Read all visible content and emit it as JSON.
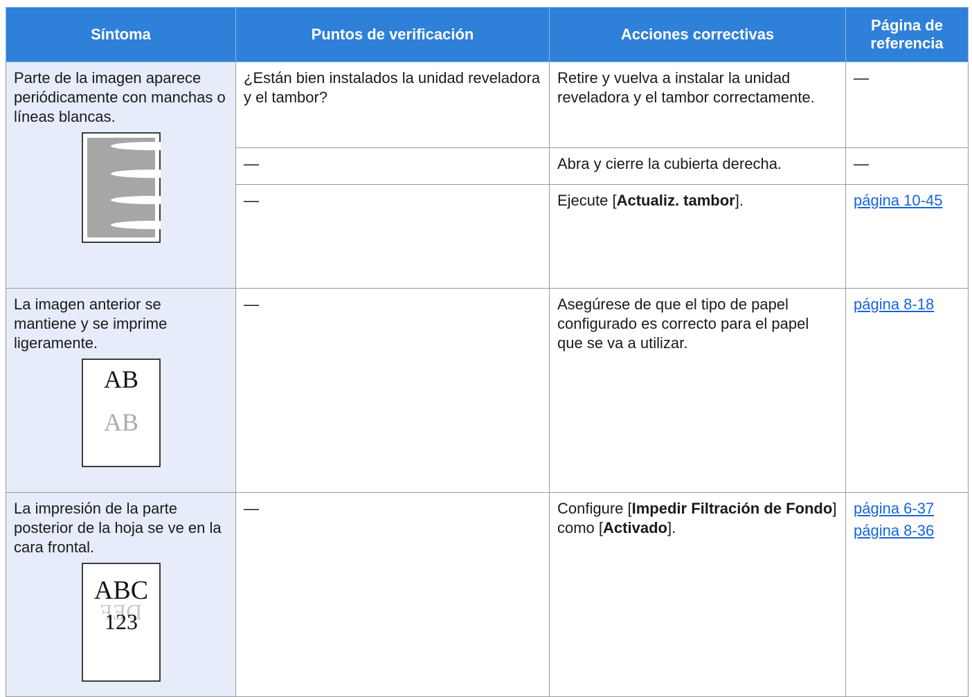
{
  "table": {
    "header": [
      "Síntoma",
      "Puntos de verificación",
      "Acciones correctivas",
      "Página de referencia"
    ],
    "rows": [
      {
        "symptom": "Parte de la imagen aparece periódicamente con manchas o líneas blancas.",
        "checks": [
          {
            "point": "¿Están bien instalados la unidad reveladora y el tambor?",
            "action": [
              {
                "text": "Retire y vuelva a instalar la unidad reveladora y el tambor correctamente."
              }
            ],
            "references": [
              {
                "text": "—"
              }
            ]
          },
          {
            "point": "—",
            "action": [
              {
                "text": "Abra y cierre la cubierta derecha."
              }
            ],
            "references": [
              {
                "text": "—"
              }
            ]
          },
          {
            "point": "—",
            "action": [
              {
                "text": "Ejecute ["
              },
              {
                "text": "Actualiz. tambor",
                "bold": true
              },
              {
                "text": "]."
              }
            ],
            "references": [
              {
                "text": "página 10-45",
                "link": true
              }
            ]
          }
        ]
      },
      {
        "symptom": "La imagen anterior se mantiene y se imprime ligeramente.",
        "illustration": [
          "AB",
          "AB"
        ],
        "checks": [
          {
            "point": "—",
            "action": [
              {
                "text": "Asegúrese de que el tipo de papel configurado es correcto para el papel que se va a utilizar."
              }
            ],
            "references": [
              {
                "text": "página 8-18",
                "link": true
              }
            ]
          }
        ]
      },
      {
        "symptom": "La impresión de la parte posterior de la hoja se ve en la cara frontal.",
        "illustration": [
          "ABC",
          "123",
          "DEF"
        ],
        "checks": [
          {
            "point": "—",
            "action": [
              {
                "text": "Configure ["
              },
              {
                "text": "Impedir Filtración de Fondo",
                "bold": true
              },
              {
                "text": "] como ["
              },
              {
                "text": "Activado",
                "bold": true
              },
              {
                "text": "]."
              }
            ],
            "references": [
              {
                "text": "página 6-37",
                "link": true
              },
              {
                "text": "página 8-36",
                "link": true
              }
            ]
          }
        ]
      }
    ]
  }
}
